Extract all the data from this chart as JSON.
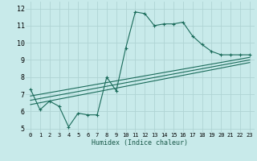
{
  "xlabel": "Humidex (Indice chaleur)",
  "background_color": "#c8eaea",
  "grid_color": "#afd4d4",
  "line_color": "#1a6b5a",
  "xlim": [
    -0.5,
    23.5
  ],
  "ylim": [
    4.8,
    12.4
  ],
  "xtick_labels": [
    "0",
    "1",
    "2",
    "3",
    "4",
    "5",
    "6",
    "7",
    "8",
    "9",
    "10",
    "11",
    "12",
    "13",
    "14",
    "15",
    "16",
    "17",
    "18",
    "19",
    "20",
    "21",
    "22",
    "23"
  ],
  "ytick_labels": [
    "5",
    "6",
    "7",
    "8",
    "9",
    "10",
    "11",
    "12"
  ],
  "ytick_vals": [
    5,
    6,
    7,
    8,
    9,
    10,
    11,
    12
  ],
  "main_line_x": [
    0,
    1,
    2,
    3,
    4,
    5,
    6,
    7,
    8,
    9,
    10,
    11,
    12,
    13,
    14,
    15,
    16,
    17,
    18,
    19,
    20,
    21,
    22,
    23
  ],
  "main_line_y": [
    7.3,
    6.1,
    6.6,
    6.3,
    5.1,
    5.9,
    5.8,
    5.8,
    8.0,
    7.2,
    9.7,
    11.8,
    11.7,
    11.0,
    11.1,
    11.1,
    11.2,
    10.4,
    9.9,
    9.5,
    9.3,
    9.3,
    9.3,
    9.3
  ],
  "reg_lines": [
    {
      "x": [
        0,
        23
      ],
      "y": [
        6.4,
        8.85
      ]
    },
    {
      "x": [
        0,
        23
      ],
      "y": [
        6.65,
        9.0
      ]
    },
    {
      "x": [
        0,
        23
      ],
      "y": [
        6.9,
        9.15
      ]
    }
  ],
  "xlabel_fontsize": 6,
  "ytick_fontsize": 6,
  "xtick_fontsize": 5
}
